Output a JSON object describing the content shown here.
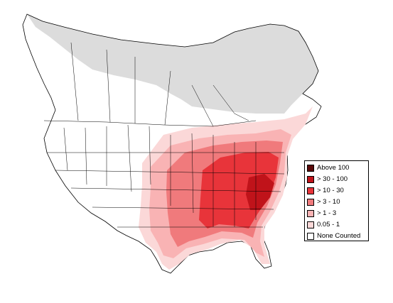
{
  "legend": {
    "items": [
      {
        "label": "Above 100",
        "color": "#5a0a0a"
      },
      {
        "label": "> 30 - 100",
        "color": "#c0131a"
      },
      {
        "label": "> 10 - 30",
        "color": "#e8343a"
      },
      {
        "label": "> 3 - 10",
        "color": "#f07a7c"
      },
      {
        "label": "> 1 - 3",
        "color": "#f9b3b4"
      },
      {
        "label": "0.05 - 1",
        "color": "#fbd8d8"
      },
      {
        "label": "None Counted",
        "color": "#ffffff"
      }
    ]
  },
  "map": {
    "land_color": "#ffffff",
    "no_data_color": "#dcdcdc",
    "boundary_color": "#000000"
  }
}
